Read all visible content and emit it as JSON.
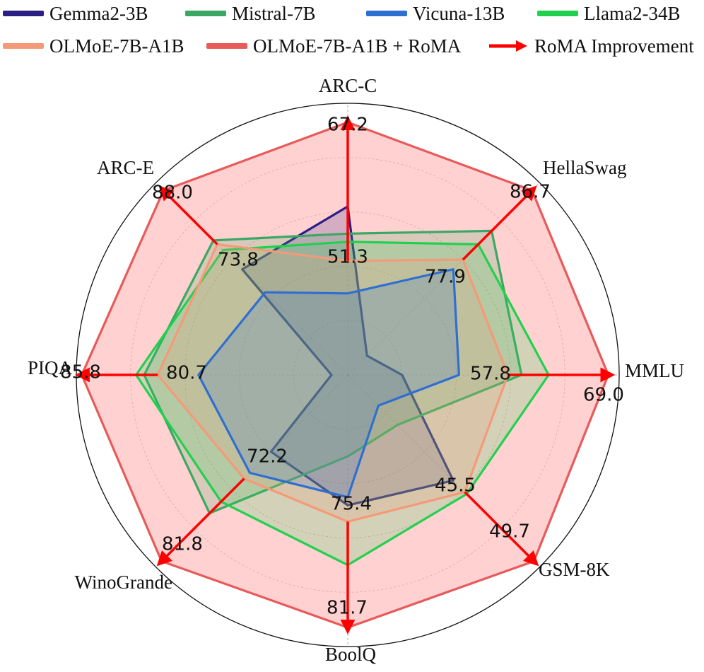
{
  "chart_data": {
    "type": "radar",
    "axes": [
      "ARC-C",
      "HellaSwag",
      "MMLU",
      "GSM-8K",
      "BoolQ",
      "WinoGrande",
      "PIQA",
      "ARC-E"
    ],
    "series": [
      {
        "name": "Gemma2-3B",
        "color": "#2b1f85",
        "values": [
          0.62,
          0.1,
          0.2,
          0.55,
          0.48,
          0.4,
          0.06,
          0.55
        ]
      },
      {
        "name": "Mistral-7B",
        "color": "#3aa864",
        "values": [
          0.52,
          0.75,
          0.64,
          0.26,
          0.3,
          0.72,
          0.75,
          0.7
        ]
      },
      {
        "name": "Vicuna-13B",
        "color": "#2f6fd1",
        "values": [
          0.3,
          0.55,
          0.41,
          0.16,
          0.45,
          0.51,
          0.55,
          0.43
        ]
      },
      {
        "name": "Llama2-34B",
        "color": "#22d050",
        "values": [
          0.49,
          0.68,
          0.74,
          0.62,
          0.7,
          0.66,
          0.78,
          0.65
        ]
      },
      {
        "name": "OLMoE-7B-A1B",
        "color": "#f59a78",
        "values": [
          0.42,
          0.6,
          0.59,
          0.61,
          0.54,
          0.54,
          0.7,
          0.68
        ]
      },
      {
        "name": "OLMoE-7B-A1B + RoMA",
        "color": "#e85a5a",
        "fill": "#ffb3b3",
        "values": [
          0.93,
          0.96,
          0.96,
          0.97,
          0.93,
          0.97,
          0.98,
          0.96
        ]
      }
    ],
    "baseline_labels": [
      "51.3",
      "77.9",
      "57.8",
      "45.5",
      "75.4",
      "72.2",
      "80.7",
      "73.8"
    ],
    "roma_labels": [
      "67.2",
      "86.7",
      "69.0",
      "49.7",
      "81.7",
      "81.8",
      "85.8",
      "88.0"
    ],
    "improvement_name": "RoMA Improvement",
    "improvement_color": "#ff0000",
    "grid_levels": 5,
    "legend": [
      {
        "label": "Gemma2-3B",
        "color": "#2b1f85",
        "kind": "line"
      },
      {
        "label": "Mistral-7B",
        "color": "#3aa864",
        "kind": "line"
      },
      {
        "label": "Vicuna-13B",
        "color": "#2f6fd1",
        "kind": "line"
      },
      {
        "label": "Llama2-34B",
        "color": "#22d050",
        "kind": "line"
      },
      {
        "label": "OLMoE-7B-A1B",
        "color": "#f59a78",
        "kind": "line"
      },
      {
        "label": "OLMoE-7B-A1B + RoMA",
        "color": "#e85a5a",
        "kind": "line"
      },
      {
        "label": "RoMA Improvement",
        "color": "#ff0000",
        "kind": "arrow"
      }
    ]
  }
}
